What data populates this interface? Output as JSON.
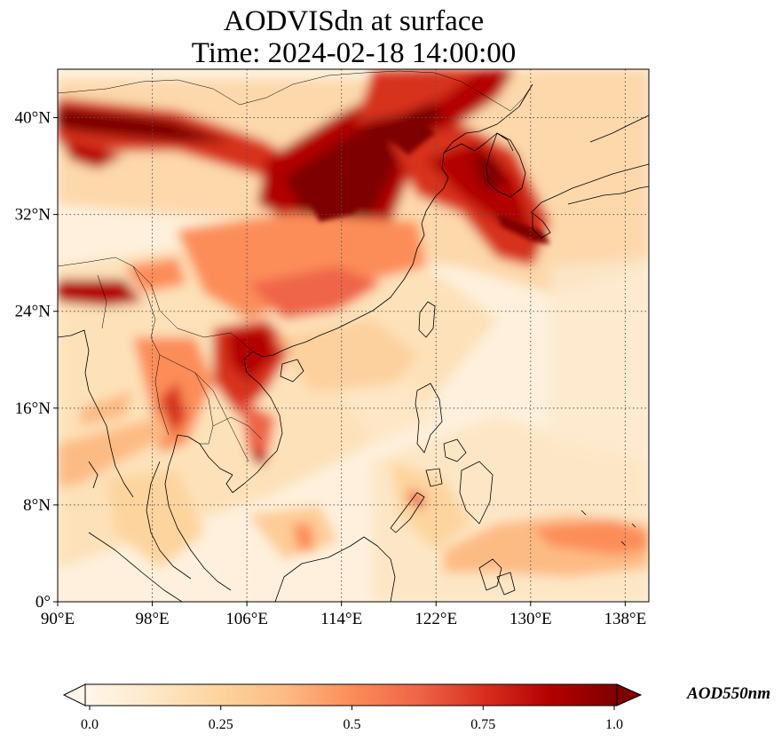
{
  "title": {
    "line1": "AODVISdn at surface",
    "line2": "Time: 2024-02-18 14:00:00"
  },
  "map": {
    "lon_range": [
      90,
      140
    ],
    "lat_range": [
      0,
      44
    ],
    "grid": "dotted",
    "lon_ticks": [
      {
        "value": 90,
        "label": "90°E"
      },
      {
        "value": 98,
        "label": "98°E"
      },
      {
        "value": 106,
        "label": "106°E"
      },
      {
        "value": 114,
        "label": "114°E"
      },
      {
        "value": 122,
        "label": "122°E"
      },
      {
        "value": 130,
        "label": "130°E"
      },
      {
        "value": 138,
        "label": "138°E"
      }
    ],
    "lat_ticks": [
      {
        "value": 0,
        "label": "0°"
      },
      {
        "value": 8,
        "label": "8°N"
      },
      {
        "value": 16,
        "label": "16°N"
      },
      {
        "value": 24,
        "label": "24°N"
      },
      {
        "value": 32,
        "label": "32°N"
      },
      {
        "value": 40,
        "label": "40°N"
      }
    ],
    "colormap": "OrRd",
    "colors": {
      "c0": "#fff7ec",
      "c1": "#fee8c8",
      "c2": "#fdd49e",
      "c3": "#fdbb84",
      "c4": "#fc8d59",
      "c5": "#ef6548",
      "c6": "#d7301f",
      "c7": "#b30000",
      "c8": "#7f0000"
    }
  },
  "colorbar": {
    "unit": "AOD550nm",
    "min": 0.0,
    "max": 1.0,
    "extend": "both",
    "tick_labels": [
      {
        "value": 0.0,
        "label": "0.0"
      },
      {
        "value": 0.25,
        "label": "0.25"
      },
      {
        "value": 0.5,
        "label": "0.5"
      },
      {
        "value": 0.75,
        "label": "0.75"
      },
      {
        "value": 1.0,
        "label": "1.0"
      }
    ]
  }
}
